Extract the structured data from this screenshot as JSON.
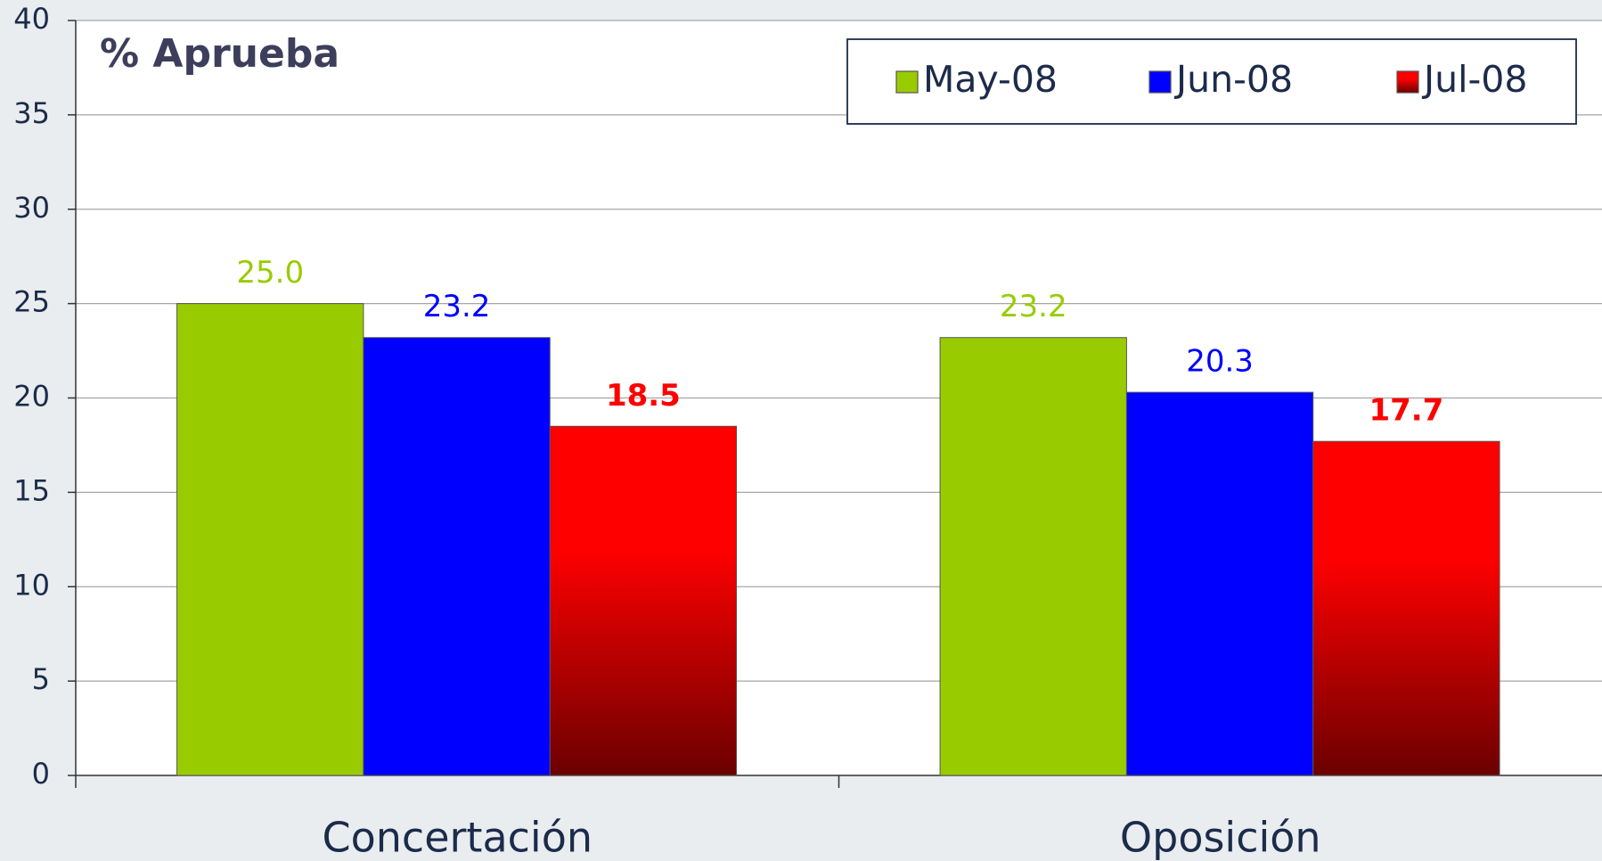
{
  "chart_data": {
    "type": "bar",
    "title": "% Aprueba",
    "categories": [
      "Concertación",
      "Oposición"
    ],
    "series": [
      {
        "name": "May-08",
        "color": "#99cc00",
        "values": [
          25.0,
          23.2
        ],
        "value_labels": [
          "25.0",
          "23.2"
        ]
      },
      {
        "name": "Jun-08",
        "color": "#0000ff",
        "values": [
          23.2,
          20.3
        ],
        "value_labels": [
          "23.2",
          "20.3"
        ]
      },
      {
        "name": "Jul-08",
        "color": "#ff0000",
        "values": [
          18.5,
          17.7
        ],
        "value_labels": [
          "18.5",
          "17.7"
        ]
      }
    ],
    "ylim": [
      0,
      40
    ],
    "yticks": [
      0,
      5,
      10,
      15,
      20,
      25,
      30,
      35,
      40
    ],
    "grid": true,
    "legend": "top-right"
  }
}
